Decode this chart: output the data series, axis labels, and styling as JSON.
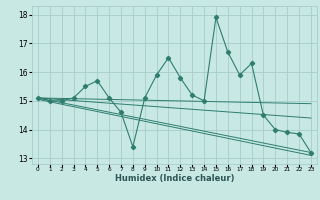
{
  "xlabel": "Humidex (Indice chaleur)",
  "ylabel": "",
  "bg_color": "#c8e8e4",
  "grid_color": "#a8cccc",
  "line_color": "#2e7d6e",
  "xlim": [
    -0.5,
    23.5
  ],
  "ylim": [
    12.8,
    18.3
  ],
  "yticks": [
    13,
    14,
    15,
    16,
    17,
    18
  ],
  "xticks": [
    0,
    1,
    2,
    3,
    4,
    5,
    6,
    7,
    8,
    9,
    10,
    11,
    12,
    13,
    14,
    15,
    16,
    17,
    18,
    19,
    20,
    21,
    22,
    23
  ],
  "zigzag_x": [
    0,
    1,
    2,
    3,
    4,
    5,
    6,
    7,
    8,
    9,
    10,
    11,
    12,
    13,
    14,
    15,
    16,
    17,
    18,
    19,
    20,
    21,
    22,
    23
  ],
  "zigzag_y": [
    15.1,
    15.0,
    15.0,
    15.1,
    15.5,
    15.7,
    15.1,
    14.6,
    13.4,
    15.1,
    15.9,
    16.5,
    15.8,
    15.2,
    15.0,
    17.9,
    16.7,
    15.9,
    16.3,
    14.5,
    14.0,
    13.9,
    13.85,
    13.2
  ],
  "trend_lines": [
    {
      "x": [
        0,
        23
      ],
      "y": [
        15.1,
        14.4
      ]
    },
    {
      "x": [
        0,
        23
      ],
      "y": [
        15.1,
        14.9
      ]
    },
    {
      "x": [
        0,
        23
      ],
      "y": [
        15.1,
        13.2
      ]
    },
    {
      "x": [
        0,
        23
      ],
      "y": [
        15.05,
        13.1
      ]
    }
  ]
}
